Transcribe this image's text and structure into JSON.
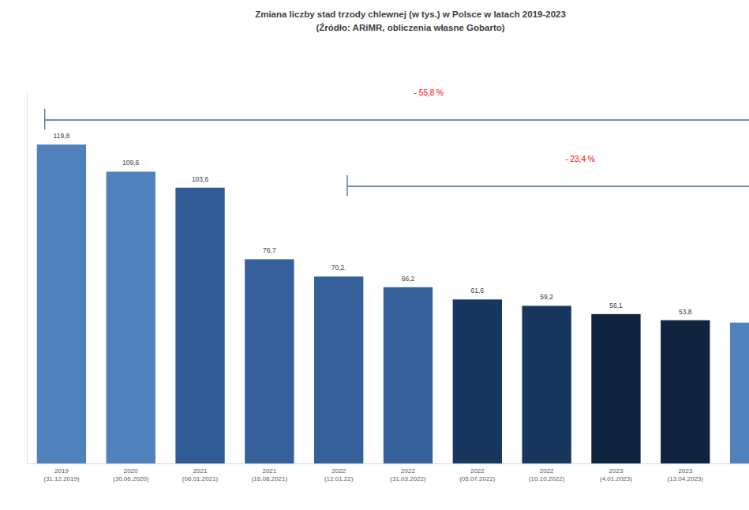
{
  "chart_data": {
    "type": "bar",
    "title": "Zmiana liczby stad trzody chlewnej (w tys.) w Polsce w latach 2019-2023",
    "subtitle": "(Źródło: ARiMR, obliczenia własne Gobarto)",
    "categories": [
      "2019\n(31.12.2019)",
      "2020\n(30.06.2020)",
      "2021\n(06.01.2021)",
      "2021\n(16.08.2021)",
      "2022\n(12.01.22)",
      "2022\n(31.03.2022)",
      "2022\n(05.07.2022)",
      "2022\n(10.10.2022)",
      "2023\n(4.01.2023)",
      "2023\n(13.04.2023)",
      null
    ],
    "values": [
      119.8,
      109.6,
      103.6,
      76.7,
      70.2,
      66.2,
      61.6,
      59.2,
      56.1,
      53.8,
      52.9
    ],
    "value_labels": [
      "119,8",
      "109,6",
      "103,6",
      "76,7",
      "70,2.",
      "66,2",
      "61,6",
      "59,2",
      "56,1",
      "53,8",
      null
    ],
    "colors": [
      "#4f81bd",
      "#4f81bd",
      "#2f5b92",
      "#35609a",
      "#35609a",
      "#35609a",
      "#17375e",
      "#17375e",
      "#10243f",
      "#10243f",
      "#4f81bd"
    ],
    "ylim": [
      0,
      140
    ],
    "data_labels": true,
    "tick_labels": "x",
    "grid": false,
    "annotations": [
      {
        "text": "- 55,8 %"
      },
      {
        "text": "- 23,4 %"
      }
    ]
  }
}
